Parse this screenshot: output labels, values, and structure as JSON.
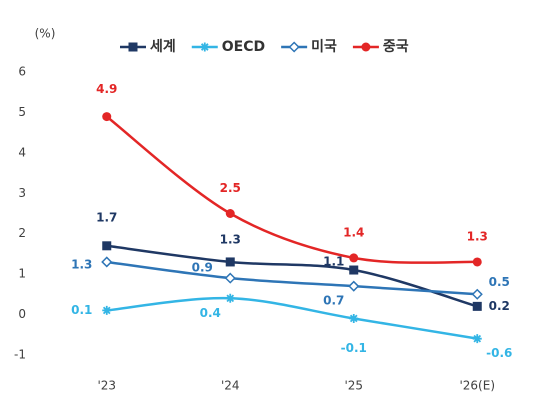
{
  "chart_data": {
    "type": "line",
    "unit": "(%)",
    "categories": [
      "'23",
      "'24",
      "'25",
      "'26(E)"
    ],
    "series": [
      {
        "name": "세계",
        "color": "#1f3864",
        "marker": "square",
        "values": [
          1.7,
          1.3,
          1.1,
          0.2
        ]
      },
      {
        "name": "OECD",
        "color": "#33b5e5",
        "marker": "star",
        "values": [
          0.1,
          0.4,
          -0.1,
          -0.6
        ]
      },
      {
        "name": "미국",
        "color": "#2e75b6",
        "marker": "diamond",
        "values": [
          1.3,
          0.9,
          0.7,
          0.5
        ]
      },
      {
        "name": "중국",
        "color": "#e32626",
        "marker": "circle",
        "values": [
          4.9,
          2.5,
          1.4,
          1.3
        ]
      }
    ],
    "ylim": [
      -1.5,
      6.5
    ],
    "yticks": [
      -1,
      0,
      1,
      2,
      3,
      4,
      5,
      6
    ],
    "grid": false,
    "legend": "top"
  }
}
